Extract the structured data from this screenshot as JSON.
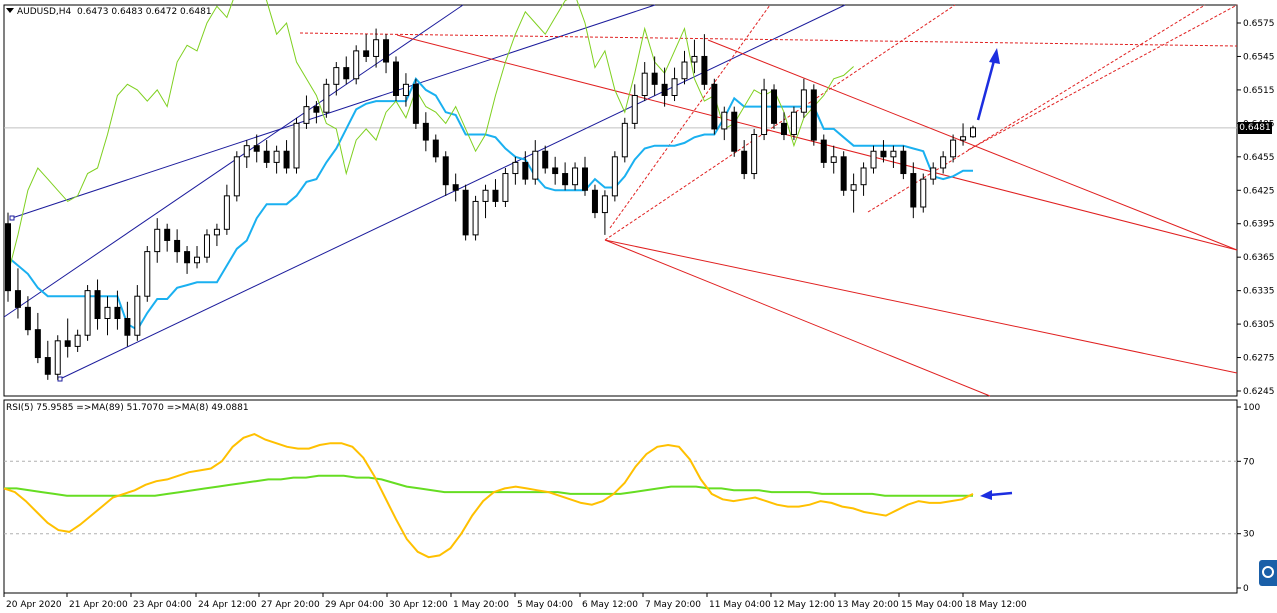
{
  "header": {
    "symbol": "AUDUSD,H4",
    "ohlc": "0.6473 0.6483 0.6472 0.6481"
  },
  "rsi_header": "RSI(5) 75.9585  =>MA(89) 51.7070  =>MA(8) 49.0881",
  "current_price_label": "0.6481",
  "colors": {
    "up_candle": "#ffffff",
    "down_candle": "#000000",
    "kijun": "#1ab0f0",
    "chikou": "#7fd020",
    "blue_channel": "#1c1c9c",
    "red_pitchfork": "#e02020",
    "arrow": "#1c2ee0",
    "rsi_line": "#ffc000",
    "rsi_ma": "#66dd22"
  },
  "chart_data": [
    {
      "type": "candlestick",
      "ylim": [
        0.6245,
        0.6575
      ],
      "y_ticks": [
        "0.6575",
        "0.6545",
        "0.6515",
        "0.6485",
        "0.6455",
        "0.6425",
        "0.6395",
        "0.6365",
        "0.6335",
        "0.6305",
        "0.6275",
        "0.6245"
      ],
      "x_ticks": [
        "20 Apr 2020",
        "21 Apr 20:00",
        "23 Apr 04:00",
        "24 Apr 12:00",
        "27 Apr 20:00",
        "29 Apr 04:00",
        "30 Apr 12:00",
        "1 May 20:00",
        "5 May 04:00",
        "6 May 12:00",
        "7 May 20:00",
        "11 May 04:00",
        "12 May 12:00",
        "13 May 20:00",
        "15 May 04:00",
        "18 May 12:00"
      ],
      "current_price": 0.6481,
      "candles": [
        [
          0.6395,
          0.6405,
          0.6325,
          0.6335
        ],
        [
          0.6335,
          0.6355,
          0.631,
          0.632
        ],
        [
          0.632,
          0.633,
          0.6295,
          0.63
        ],
        [
          0.63,
          0.6315,
          0.627,
          0.6275
        ],
        [
          0.6275,
          0.629,
          0.6255,
          0.626
        ],
        [
          0.626,
          0.6295,
          0.6255,
          0.629
        ],
        [
          0.629,
          0.631,
          0.6275,
          0.6285
        ],
        [
          0.6285,
          0.63,
          0.628,
          0.6295
        ],
        [
          0.6295,
          0.634,
          0.629,
          0.6335
        ],
        [
          0.6335,
          0.6345,
          0.63,
          0.631
        ],
        [
          0.631,
          0.633,
          0.6295,
          0.632
        ],
        [
          0.632,
          0.6335,
          0.63,
          0.631
        ],
        [
          0.631,
          0.6325,
          0.6285,
          0.6295
        ],
        [
          0.6295,
          0.634,
          0.629,
          0.633
        ],
        [
          0.633,
          0.6375,
          0.6325,
          0.637
        ],
        [
          0.637,
          0.64,
          0.636,
          0.639
        ],
        [
          0.639,
          0.6395,
          0.637,
          0.638
        ],
        [
          0.638,
          0.639,
          0.636,
          0.637
        ],
        [
          0.637,
          0.6375,
          0.635,
          0.636
        ],
        [
          0.636,
          0.6375,
          0.6355,
          0.6365
        ],
        [
          0.6365,
          0.639,
          0.636,
          0.6385
        ],
        [
          0.6385,
          0.6395,
          0.6375,
          0.639
        ],
        [
          0.639,
          0.643,
          0.6385,
          0.642
        ],
        [
          0.642,
          0.646,
          0.6415,
          0.6455
        ],
        [
          0.6455,
          0.647,
          0.6445,
          0.6465
        ],
        [
          0.6465,
          0.6475,
          0.645,
          0.646
        ],
        [
          0.646,
          0.647,
          0.6445,
          0.645
        ],
        [
          0.645,
          0.6465,
          0.644,
          0.646
        ],
        [
          0.646,
          0.647,
          0.644,
          0.6445
        ],
        [
          0.6445,
          0.649,
          0.644,
          0.6485
        ],
        [
          0.6485,
          0.651,
          0.648,
          0.65
        ],
        [
          0.65,
          0.6505,
          0.6485,
          0.6495
        ],
        [
          0.6495,
          0.6525,
          0.649,
          0.652
        ],
        [
          0.652,
          0.654,
          0.651,
          0.6535
        ],
        [
          0.6535,
          0.6545,
          0.652,
          0.6525
        ],
        [
          0.6525,
          0.6555,
          0.652,
          0.655
        ],
        [
          0.655,
          0.6565,
          0.654,
          0.6545
        ],
        [
          0.6545,
          0.657,
          0.6535,
          0.656
        ],
        [
          0.656,
          0.6565,
          0.653,
          0.654
        ],
        [
          0.654,
          0.6545,
          0.6505,
          0.651
        ],
        [
          0.651,
          0.653,
          0.65,
          0.652
        ],
        [
          0.652,
          0.6525,
          0.648,
          0.6485
        ],
        [
          0.6485,
          0.6495,
          0.646,
          0.647
        ],
        [
          0.647,
          0.6475,
          0.645,
          0.6455
        ],
        [
          0.6455,
          0.646,
          0.642,
          0.643
        ],
        [
          0.643,
          0.644,
          0.6415,
          0.6425
        ],
        [
          0.6425,
          0.643,
          0.638,
          0.6385
        ],
        [
          0.6385,
          0.642,
          0.638,
          0.6415
        ],
        [
          0.6415,
          0.643,
          0.64,
          0.6425
        ],
        [
          0.6425,
          0.6435,
          0.641,
          0.6415
        ],
        [
          0.6415,
          0.6445,
          0.641,
          0.644
        ],
        [
          0.644,
          0.6455,
          0.643,
          0.645
        ],
        [
          0.645,
          0.646,
          0.643,
          0.6435
        ],
        [
          0.6435,
          0.647,
          0.643,
          0.646
        ],
        [
          0.646,
          0.6465,
          0.644,
          0.6445
        ],
        [
          0.6445,
          0.6455,
          0.643,
          0.644
        ],
        [
          0.644,
          0.645,
          0.6425,
          0.643
        ],
        [
          0.643,
          0.645,
          0.6425,
          0.6445
        ],
        [
          0.6445,
          0.6455,
          0.642,
          0.6425
        ],
        [
          0.6425,
          0.643,
          0.64,
          0.6405
        ],
        [
          0.6405,
          0.6425,
          0.6385,
          0.642
        ],
        [
          0.642,
          0.646,
          0.6415,
          0.6455
        ],
        [
          0.6455,
          0.649,
          0.645,
          0.6485
        ],
        [
          0.6485,
          0.652,
          0.648,
          0.651
        ],
        [
          0.651,
          0.654,
          0.6505,
          0.653
        ],
        [
          0.653,
          0.6545,
          0.651,
          0.652
        ],
        [
          0.652,
          0.6535,
          0.65,
          0.651
        ],
        [
          0.651,
          0.6535,
          0.6505,
          0.6525
        ],
        [
          0.6525,
          0.655,
          0.652,
          0.654
        ],
        [
          0.654,
          0.656,
          0.653,
          0.6545
        ],
        [
          0.6545,
          0.6565,
          0.6515,
          0.652
        ],
        [
          0.652,
          0.6525,
          0.6475,
          0.648
        ],
        [
          0.648,
          0.65,
          0.647,
          0.6495
        ],
        [
          0.6495,
          0.65,
          0.6455,
          0.646
        ],
        [
          0.646,
          0.647,
          0.6435,
          0.644
        ],
        [
          0.644,
          0.648,
          0.6435,
          0.6475
        ],
        [
          0.6475,
          0.6525,
          0.647,
          0.6515
        ],
        [
          0.6515,
          0.652,
          0.648,
          0.6485
        ],
        [
          0.6485,
          0.6495,
          0.647,
          0.6475
        ],
        [
          0.6475,
          0.65,
          0.647,
          0.6495
        ],
        [
          0.6495,
          0.6525,
          0.649,
          0.6515
        ],
        [
          0.6515,
          0.652,
          0.6465,
          0.647
        ],
        [
          0.647,
          0.6475,
          0.6445,
          0.645
        ],
        [
          0.645,
          0.6465,
          0.644,
          0.6455
        ],
        [
          0.6455,
          0.646,
          0.642,
          0.6425
        ],
        [
          0.6425,
          0.644,
          0.6405,
          0.643
        ],
        [
          0.643,
          0.645,
          0.642,
          0.6445
        ],
        [
          0.6445,
          0.6465,
          0.644,
          0.646
        ],
        [
          0.646,
          0.647,
          0.645,
          0.6455
        ],
        [
          0.6455,
          0.6465,
          0.6445,
          0.646
        ],
        [
          0.646,
          0.6465,
          0.6435,
          0.644
        ],
        [
          0.644,
          0.645,
          0.64,
          0.641
        ],
        [
          0.641,
          0.644,
          0.6405,
          0.6435
        ],
        [
          0.6435,
          0.645,
          0.643,
          0.6445
        ],
        [
          0.6445,
          0.646,
          0.644,
          0.6455
        ],
        [
          0.6455,
          0.6475,
          0.645,
          0.647
        ],
        [
          0.647,
          0.6485,
          0.6465,
          0.6473
        ],
        [
          0.6473,
          0.6483,
          0.6472,
          0.6481
        ]
      ]
    },
    {
      "type": "line",
      "ylim": [
        0,
        100
      ],
      "y_ticks": [
        "100",
        "70",
        "30",
        "0"
      ],
      "series": [
        {
          "values": [
            55,
            53,
            48,
            42,
            36,
            32,
            31,
            35,
            40,
            45,
            50,
            52,
            54,
            57,
            59,
            60,
            62,
            64,
            65,
            66,
            70,
            78,
            83,
            85,
            82,
            80,
            78,
            77,
            77,
            79,
            80,
            80,
            78,
            72,
            62,
            50,
            38,
            27,
            20,
            17,
            18,
            22,
            30,
            40,
            48,
            53,
            55,
            56,
            55,
            54,
            53,
            51,
            49,
            47,
            46,
            48,
            52,
            58,
            67,
            74,
            78,
            79,
            78,
            71,
            60,
            52,
            49,
            48,
            49,
            50,
            48,
            46,
            45,
            45,
            46,
            48,
            47,
            45,
            44,
            42,
            41,
            40,
            43,
            46,
            48,
            47,
            47,
            48,
            49,
            52
          ]
        },
        {
          "values": [
            55,
            55,
            54,
            53,
            52,
            51,
            51,
            51,
            51,
            51,
            51,
            51,
            51,
            52,
            53,
            54,
            55,
            56,
            57,
            58,
            59,
            60,
            60,
            61,
            61,
            62,
            62,
            62,
            61,
            61,
            60,
            58,
            56,
            55,
            54,
            53,
            53,
            53,
            53,
            53,
            53,
            53,
            53,
            53,
            53,
            52,
            52,
            52,
            52,
            52,
            53,
            54,
            55,
            56,
            56,
            56,
            55,
            55,
            54,
            54,
            54,
            53,
            53,
            53,
            53,
            52,
            52,
            52,
            52,
            52,
            51,
            51,
            51,
            51,
            51,
            51,
            51,
            51
          ]
        }
      ]
    }
  ]
}
